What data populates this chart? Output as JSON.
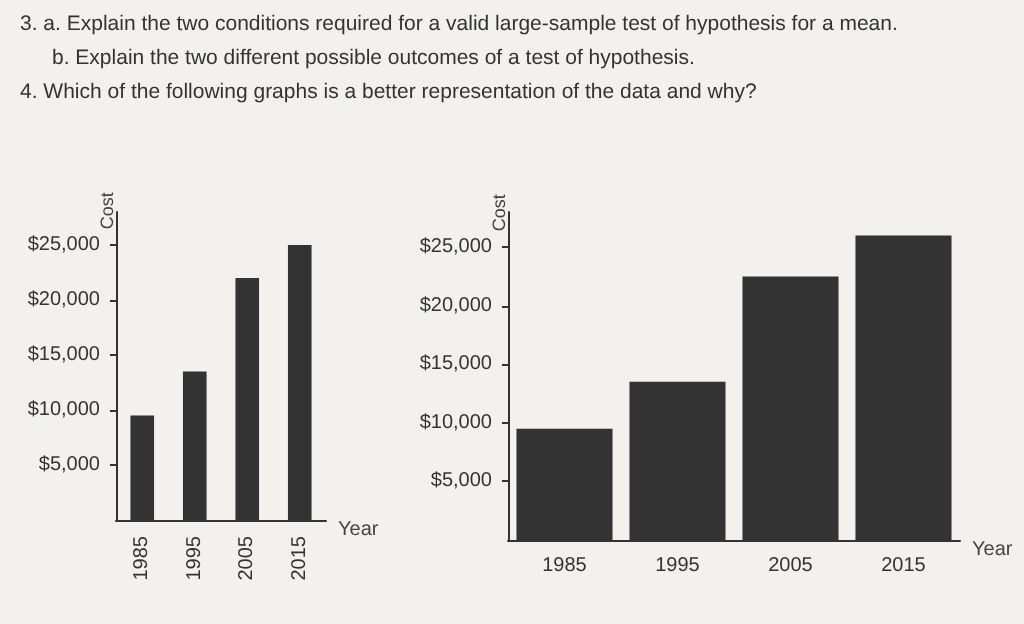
{
  "chart_data": [
    {
      "type": "bar",
      "annotations": [
        "3. a. Explain the two conditions required for a valid large-sample test of hypothesis for a mean.",
        "b. Explain the two different possible outcomes of a test of hypothesis.",
        "4. Which of the following graphs is a better representation of the data and why?"
      ],
      "xlabel": "Year",
      "ylabel": "Cost",
      "categories": [
        "1985",
        "1995",
        "2005",
        "2015"
      ],
      "values": [
        9500,
        13500,
        22000,
        25000
      ],
      "color": "#333333",
      "ylim": [
        0,
        28000
      ],
      "yticks": [
        {
          "value": 5000,
          "label": "$5,000"
        },
        {
          "value": 10000,
          "label": "$10,000"
        },
        {
          "value": 15000,
          "label": "$15,000"
        },
        {
          "value": 20000,
          "label": "$20,000"
        },
        {
          "value": 25000,
          "label": "$25,000"
        }
      ],
      "grid": false
    },
    {
      "type": "bar",
      "xlabel": "Year",
      "ylabel": "Cost",
      "categories": [
        "1985",
        "1995",
        "2005",
        "2015"
      ],
      "values": [
        9500,
        13500,
        22500,
        26000
      ],
      "color": "#333333",
      "ylim": [
        0,
        28000
      ],
      "yticks": [
        {
          "value": 5000,
          "label": "$5,000"
        },
        {
          "value": 10000,
          "label": "$10,000"
        },
        {
          "value": 15000,
          "label": "$15,000"
        },
        {
          "value": 20000,
          "label": "$20,000"
        },
        {
          "value": 25000,
          "label": "$25,000"
        }
      ],
      "grid": false
    }
  ]
}
